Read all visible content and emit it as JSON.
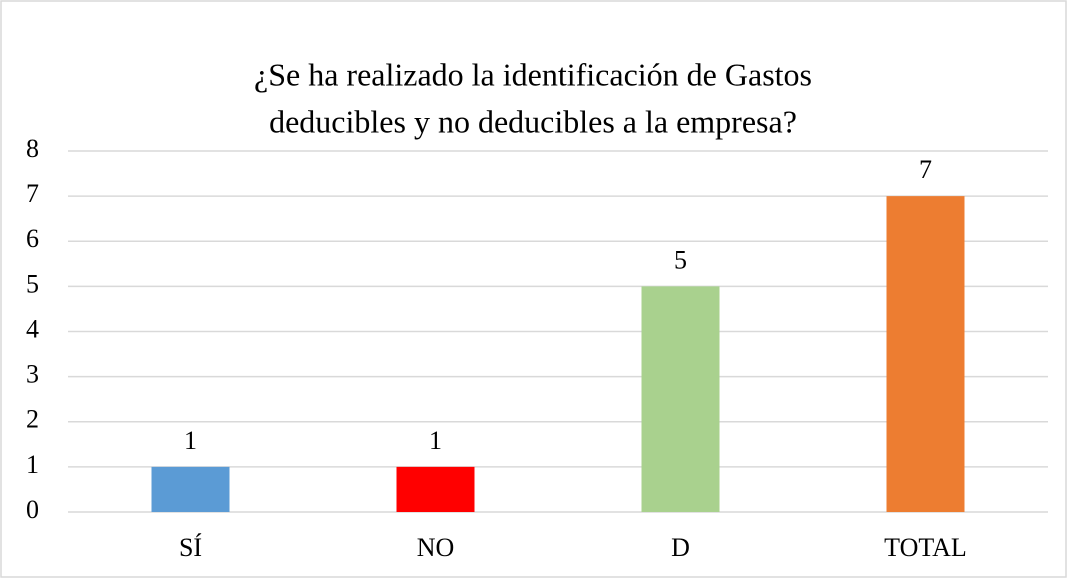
{
  "chart_data": {
    "type": "bar",
    "title": [
      "¿Se ha realizado la identificación de Gastos",
      "deducibles y no deducibles a la empresa?"
    ],
    "categories": [
      "SÍ",
      "NO",
      "D",
      "TOTAL"
    ],
    "values": [
      1,
      1,
      5,
      7
    ],
    "colors": [
      "#5b9bd5",
      "#ff0000",
      "#a9d18e",
      "#ed7d31"
    ],
    "ylim": [
      0,
      8
    ],
    "yticks": [
      0,
      1,
      2,
      3,
      4,
      5,
      6,
      7,
      8
    ],
    "grid": true,
    "data_labels": true
  }
}
